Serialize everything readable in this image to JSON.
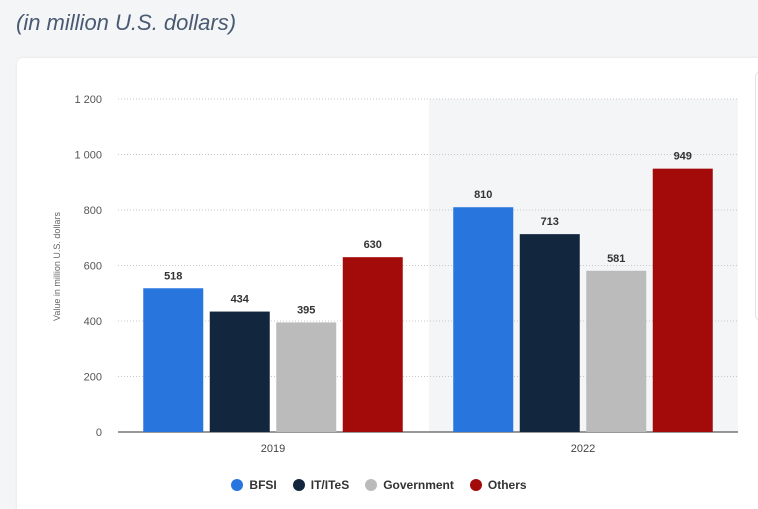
{
  "subtitle": "(in million U.S. dollars)",
  "chart_data": {
    "type": "bar",
    "title": "(in million U.S. dollars)",
    "xlabel": "",
    "ylabel": "Value in million U.S. dollars",
    "categories": [
      "2019",
      "2022"
    ],
    "series": [
      {
        "name": "BFSI",
        "color": "#2876dd",
        "values": [
          518,
          810
        ]
      },
      {
        "name": "IT/ITeS",
        "color": "#12263d",
        "values": [
          434,
          713
        ]
      },
      {
        "name": "Government",
        "color": "#bbbbbb",
        "values": [
          395,
          581
        ]
      },
      {
        "name": "Others",
        "color": "#a30b0b",
        "values": [
          630,
          949
        ]
      }
    ],
    "yticks": [
      0,
      200,
      400,
      600,
      800,
      1000,
      1200
    ],
    "ytick_labels": [
      "0",
      "200",
      "400",
      "600",
      "800",
      "1 000",
      "1 200"
    ],
    "ylim": [
      0,
      1200
    ],
    "grid": true,
    "legend_position": "bottom-center"
  }
}
